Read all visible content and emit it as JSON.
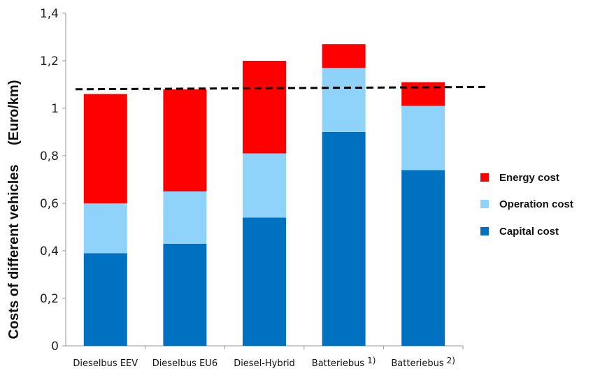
{
  "chart_data": {
    "type": "bar",
    "stacked": true,
    "categories": [
      "Dieselbus EEV",
      "Dieselbus EU6",
      "Diesel-Hybrid",
      "Batteriebus",
      "Batteriebus"
    ],
    "category_footnotes": [
      "",
      "",
      "",
      "1)",
      "2)"
    ],
    "series": [
      {
        "name": "Capital cost",
        "color": "#0070c0",
        "values": [
          0.39,
          0.43,
          0.54,
          0.9,
          0.74
        ]
      },
      {
        "name": "Operation cost",
        "color": "#8fd3fb",
        "values": [
          0.21,
          0.22,
          0.27,
          0.27,
          0.27
        ]
      },
      {
        "name": "Energy cost",
        "color": "#ff0000",
        "values": [
          0.46,
          0.43,
          0.39,
          0.1,
          0.1
        ]
      }
    ],
    "ylabel_main": "Costs of different vehicles",
    "ylabel_unit": "(Euro/km)",
    "ylim": [
      0,
      1.4
    ],
    "yticks": [
      "0",
      "0,2",
      "0,4",
      "0,6",
      "0,8",
      "1",
      "1,2",
      "1,4"
    ],
    "reference_line": {
      "style": "dashed",
      "y_start": 1.08,
      "y_end": 1.09
    },
    "legend_order": [
      "Energy cost",
      "Operation cost",
      "Capital cost"
    ],
    "legend_position": "right",
    "grid": false
  }
}
